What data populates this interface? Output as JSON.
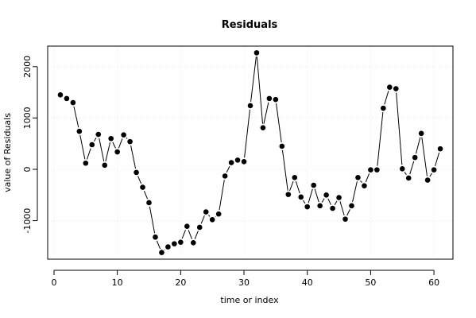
{
  "chart_data": {
    "type": "line",
    "title": "Residuals",
    "xlabel": "time or index",
    "ylabel": "value of Residuals",
    "xlim": [
      -1,
      63
    ],
    "ylim": [
      -1750,
      2400
    ],
    "x_ticks": [
      0,
      10,
      20,
      30,
      40,
      50,
      60
    ],
    "y_ticks": [
      -1000,
      0,
      1000,
      2000
    ],
    "grid": true,
    "markers": "filled-circle",
    "series": [
      {
        "x": [
          1,
          2,
          3,
          4,
          5,
          6,
          7,
          8,
          9,
          10,
          11,
          12,
          13,
          14,
          15,
          16,
          17,
          18,
          19,
          20,
          21,
          22,
          23,
          24,
          25,
          26,
          27,
          28,
          29,
          30,
          31,
          32,
          33,
          34,
          35,
          36,
          37,
          38,
          39,
          40,
          41,
          42,
          43,
          44,
          45,
          46,
          47,
          48,
          49,
          50,
          51,
          52,
          53,
          54,
          55,
          56,
          57,
          58,
          59,
          60,
          61
        ],
        "values": [
          1450,
          1380,
          1300,
          740,
          120,
          480,
          680,
          80,
          600,
          340,
          670,
          540,
          -60,
          -350,
          -650,
          -1320,
          -1620,
          -1510,
          -1450,
          -1420,
          -1110,
          -1430,
          -1130,
          -830,
          -980,
          -870,
          -130,
          130,
          180,
          150,
          1240,
          2270,
          810,
          1380,
          1360,
          450,
          -490,
          -160,
          -540,
          -730,
          -310,
          -710,
          -500,
          -760,
          -550,
          -970,
          -710,
          -160,
          -320,
          -10,
          -10,
          1190,
          1600,
          1570,
          10,
          -170,
          230,
          700,
          -210,
          -10,
          400
        ]
      }
    ]
  }
}
